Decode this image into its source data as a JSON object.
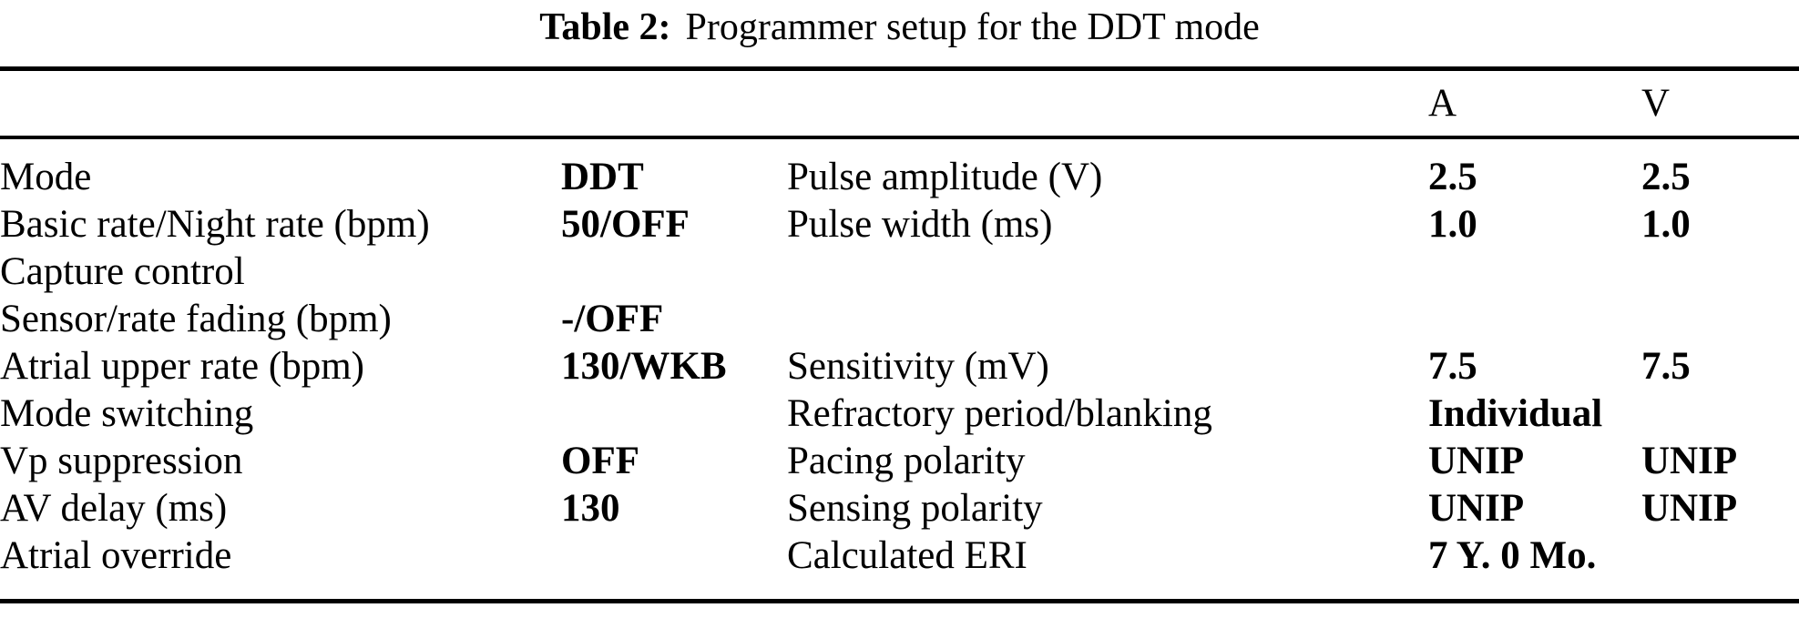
{
  "title": {
    "label": "Table 2:",
    "text": "Programmer setup for the DDT mode"
  },
  "table": {
    "header": {
      "a": "A",
      "v": "V"
    },
    "rows": [
      {
        "param_left": "Mode",
        "value": "DDT",
        "param_right": "Pulse amplitude (V)",
        "a": "2.5",
        "v": "2.5"
      },
      {
        "param_left": "Basic rate/Night rate (bpm)",
        "value": "50/OFF",
        "param_right": "Pulse width (ms)",
        "a": "1.0",
        "v": "1.0"
      },
      {
        "param_left": "Capture control",
        "value": "",
        "param_right": "",
        "a": "",
        "v": ""
      },
      {
        "param_left": "Sensor/rate fading (bpm)",
        "value": "-/OFF",
        "param_right": "",
        "a": "",
        "v": ""
      },
      {
        "param_left": "Atrial upper rate (bpm)",
        "value": "130/WKB",
        "param_right": "Sensitivity (mV)",
        "a": "7.5",
        "v": "7.5"
      },
      {
        "param_left": "Mode switching",
        "value": "",
        "param_right": "Refractory period/blanking",
        "a": "Individual",
        "v": ""
      },
      {
        "param_left": "Vp suppression",
        "value": "OFF",
        "param_right": "Pacing polarity",
        "a": "UNIP",
        "v": "UNIP"
      },
      {
        "param_left": "AV delay (ms)",
        "value": "130",
        "param_right": "Sensing polarity",
        "a": "UNIP",
        "v": "UNIP"
      },
      {
        "param_left": "Atrial override",
        "value": "",
        "param_right": "Calculated ERI",
        "a": "7 Y. 0 Mo.",
        "v": ""
      }
    ]
  }
}
